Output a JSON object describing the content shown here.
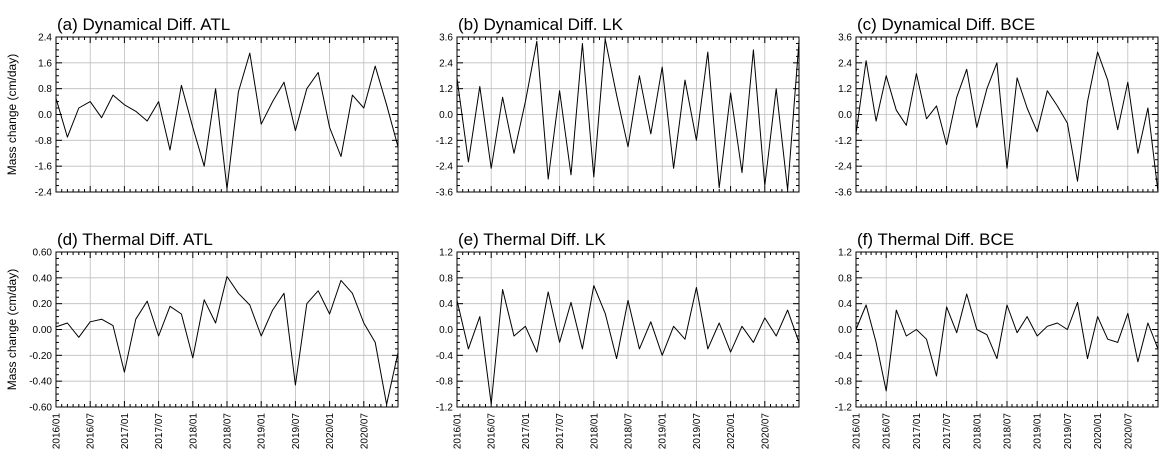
{
  "chart_data": [
    {
      "type": "line",
      "title": "(a) Dynamical Diff. ATL",
      "ylabel": "Mass change (cm/day)",
      "xlabel": "",
      "ylim": [
        -2.4,
        2.4
      ],
      "yticks": [
        "-2.4",
        "-1.6",
        "-0.8",
        "0.0",
        "0.8",
        "1.6",
        "2.4"
      ],
      "x_range": [
        "2016-01",
        "2021-01"
      ],
      "xticks": [],
      "grid": true,
      "series": [
        {
          "x": [
            "2016-01",
            "2016-03",
            "2016-05",
            "2016-07",
            "2016-09",
            "2016-11",
            "2017-01",
            "2017-03",
            "2017-05",
            "2017-07",
            "2017-09",
            "2017-11",
            "2018-01",
            "2018-03",
            "2018-05",
            "2018-07",
            "2018-09",
            "2018-11",
            "2019-01",
            "2019-03",
            "2019-05",
            "2019-07",
            "2019-09",
            "2019-11",
            "2020-01",
            "2020-03",
            "2020-05",
            "2020-07",
            "2020-09",
            "2020-11",
            "2021-01"
          ],
          "y": [
            0.5,
            -0.7,
            0.2,
            0.4,
            -0.1,
            0.6,
            0.3,
            0.1,
            -0.2,
            0.4,
            -1.1,
            0.9,
            -0.4,
            -1.6,
            0.8,
            -2.3,
            0.7,
            1.9,
            -0.3,
            0.4,
            1.0,
            -0.5,
            0.8,
            1.3,
            -0.4,
            -1.3,
            0.6,
            0.2,
            1.5,
            0.3,
            -1.0
          ]
        }
      ]
    },
    {
      "type": "line",
      "title": "(b) Dynamical Diff. LK",
      "ylabel": "",
      "xlabel": "",
      "ylim": [
        -3.6,
        3.6
      ],
      "yticks": [
        "-3.6",
        "-2.4",
        "-1.2",
        "0.0",
        "1.2",
        "2.4",
        "3.6"
      ],
      "x_range": [
        "2016-01",
        "2021-01"
      ],
      "xticks": [],
      "grid": true,
      "series": [
        {
          "x": [
            "2016-01",
            "2016-03",
            "2016-05",
            "2016-07",
            "2016-09",
            "2016-11",
            "2017-01",
            "2017-03",
            "2017-05",
            "2017-07",
            "2017-09",
            "2017-11",
            "2018-01",
            "2018-03",
            "2018-05",
            "2018-07",
            "2018-09",
            "2018-11",
            "2019-01",
            "2019-03",
            "2019-05",
            "2019-07",
            "2019-09",
            "2019-11",
            "2020-01",
            "2020-03",
            "2020-05",
            "2020-07",
            "2020-09",
            "2020-11",
            "2021-01"
          ],
          "y": [
            1.7,
            -2.2,
            1.3,
            -2.5,
            0.8,
            -1.8,
            0.6,
            3.4,
            -3.0,
            1.1,
            -2.8,
            3.3,
            -2.9,
            3.5,
            0.9,
            -1.5,
            1.8,
            -0.9,
            2.2,
            -2.5,
            1.6,
            -1.2,
            2.9,
            -3.4,
            1.0,
            -2.7,
            3.0,
            -3.3,
            1.2,
            -3.5,
            3.4
          ]
        }
      ]
    },
    {
      "type": "line",
      "title": "(c) Dynamical Diff. BCE",
      "ylabel": "",
      "xlabel": "",
      "ylim": [
        -3.6,
        3.6
      ],
      "yticks": [
        "-3.6",
        "-2.4",
        "-1.2",
        "0.0",
        "1.2",
        "2.4",
        "3.6"
      ],
      "x_range": [
        "2016-01",
        "2021-01"
      ],
      "xticks": [],
      "grid": true,
      "series": [
        {
          "x": [
            "2016-01",
            "2016-03",
            "2016-05",
            "2016-07",
            "2016-09",
            "2016-11",
            "2017-01",
            "2017-03",
            "2017-05",
            "2017-07",
            "2017-09",
            "2017-11",
            "2018-01",
            "2018-03",
            "2018-05",
            "2018-07",
            "2018-09",
            "2018-11",
            "2019-01",
            "2019-03",
            "2019-05",
            "2019-07",
            "2019-09",
            "2019-11",
            "2020-01",
            "2020-03",
            "2020-05",
            "2020-07",
            "2020-09",
            "2020-11",
            "2021-01"
          ],
          "y": [
            -0.9,
            2.5,
            -0.3,
            1.8,
            0.2,
            -0.5,
            1.9,
            -0.2,
            0.4,
            -1.4,
            0.8,
            2.1,
            -0.6,
            1.2,
            2.4,
            -2.5,
            1.7,
            0.3,
            -0.8,
            1.1,
            0.4,
            -0.4,
            -3.1,
            0.6,
            2.9,
            1.6,
            -0.7,
            1.5,
            -1.8,
            0.3,
            -3.6
          ]
        }
      ]
    },
    {
      "type": "line",
      "title": "(d) Thermal Diff. ATL",
      "ylabel": "Mass change (cm/day)",
      "xlabel": "",
      "ylim": [
        -0.6,
        0.6
      ],
      "yticks": [
        "-0.60",
        "-0.40",
        "-0.20",
        "0.00",
        "0.20",
        "0.40",
        "0.60"
      ],
      "x_range": [
        "2016-01",
        "2021-01"
      ],
      "xticks": [
        "2016/01",
        "2016/07",
        "2017/01",
        "2017/07",
        "2018/01",
        "2018/07",
        "2019/01",
        "2019/07",
        "2020/01",
        "2020/07"
      ],
      "grid": true,
      "series": [
        {
          "x": [
            "2016-01",
            "2016-03",
            "2016-05",
            "2016-07",
            "2016-09",
            "2016-11",
            "2017-01",
            "2017-03",
            "2017-05",
            "2017-07",
            "2017-09",
            "2017-11",
            "2018-01",
            "2018-03",
            "2018-05",
            "2018-07",
            "2018-09",
            "2018-11",
            "2019-01",
            "2019-03",
            "2019-05",
            "2019-07",
            "2019-09",
            "2019-11",
            "2020-01",
            "2020-03",
            "2020-05",
            "2020-07",
            "2020-09",
            "2020-11",
            "2021-01"
          ],
          "y": [
            0.02,
            0.05,
            -0.06,
            0.06,
            0.08,
            0.03,
            -0.33,
            0.08,
            0.22,
            -0.05,
            0.18,
            0.12,
            -0.22,
            0.23,
            0.05,
            0.41,
            0.28,
            0.19,
            -0.05,
            0.15,
            0.28,
            -0.43,
            0.2,
            0.3,
            0.12,
            0.38,
            0.28,
            0.05,
            -0.1,
            -0.58,
            -0.18
          ]
        }
      ]
    },
    {
      "type": "line",
      "title": "(e) Thermal Diff. LK",
      "ylabel": "",
      "xlabel": "",
      "ylim": [
        -1.2,
        1.2
      ],
      "yticks": [
        "-1.2",
        "-0.8",
        "-0.4",
        "0.0",
        "0.4",
        "0.8",
        "1.2"
      ],
      "x_range": [
        "2016-01",
        "2021-01"
      ],
      "xticks": [
        "2016/01",
        "2016/07",
        "2017/01",
        "2017/07",
        "2018/01",
        "2018/07",
        "2019/01",
        "2019/07",
        "2020/01",
        "2020/07"
      ],
      "grid": true,
      "series": [
        {
          "x": [
            "2016-01",
            "2016-03",
            "2016-05",
            "2016-07",
            "2016-09",
            "2016-11",
            "2017-01",
            "2017-03",
            "2017-05",
            "2017-07",
            "2017-09",
            "2017-11",
            "2018-01",
            "2018-03",
            "2018-05",
            "2018-07",
            "2018-09",
            "2018-11",
            "2019-01",
            "2019-03",
            "2019-05",
            "2019-07",
            "2019-09",
            "2019-11",
            "2020-01",
            "2020-03",
            "2020-05",
            "2020-07",
            "2020-09",
            "2020-11",
            "2021-01"
          ],
          "y": [
            0.45,
            -0.3,
            0.2,
            -1.15,
            0.62,
            -0.1,
            0.05,
            -0.35,
            0.58,
            -0.2,
            0.42,
            -0.3,
            0.68,
            0.25,
            -0.45,
            0.45,
            -0.3,
            0.12,
            -0.4,
            0.05,
            -0.15,
            0.65,
            -0.3,
            0.1,
            -0.35,
            0.05,
            -0.2,
            0.18,
            -0.1,
            0.3,
            -0.2
          ]
        }
      ]
    },
    {
      "type": "line",
      "title": "(f) Thermal Diff. BCE",
      "ylabel": "",
      "xlabel": "",
      "ylim": [
        -1.2,
        1.2
      ],
      "yticks": [
        "-1.2",
        "-0.8",
        "-0.4",
        "0.0",
        "0.4",
        "0.8",
        "1.2"
      ],
      "x_range": [
        "2016-01",
        "2021-01"
      ],
      "xticks": [
        "2016/01",
        "2016/07",
        "2017/01",
        "2017/07",
        "2018/01",
        "2018/07",
        "2019/01",
        "2019/07",
        "2020/01",
        "2020/07"
      ],
      "grid": true,
      "series": [
        {
          "x": [
            "2016-01",
            "2016-03",
            "2016-05",
            "2016-07",
            "2016-09",
            "2016-11",
            "2017-01",
            "2017-03",
            "2017-05",
            "2017-07",
            "2017-09",
            "2017-11",
            "2018-01",
            "2018-03",
            "2018-05",
            "2018-07",
            "2018-09",
            "2018-11",
            "2019-01",
            "2019-03",
            "2019-05",
            "2019-07",
            "2019-09",
            "2019-11",
            "2020-01",
            "2020-03",
            "2020-05",
            "2020-07",
            "2020-09",
            "2020-11",
            "2021-01"
          ],
          "y": [
            0.0,
            0.38,
            -0.2,
            -0.95,
            0.3,
            -0.1,
            0.0,
            -0.15,
            -0.72,
            0.35,
            -0.05,
            0.55,
            0.0,
            -0.08,
            -0.45,
            0.38,
            -0.05,
            0.2,
            -0.1,
            0.05,
            0.1,
            0.0,
            0.42,
            -0.45,
            0.2,
            -0.15,
            -0.2,
            0.25,
            -0.5,
            0.1,
            -0.3
          ]
        }
      ]
    }
  ]
}
